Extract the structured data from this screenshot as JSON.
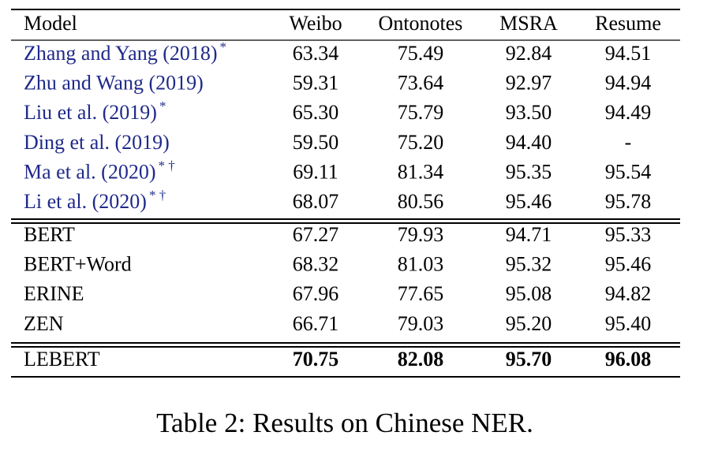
{
  "table": {
    "header": [
      "Model",
      "Weibo",
      "Ontonotes",
      "MSRA",
      "Resume"
    ],
    "groups": [
      {
        "color": "#1f2a8a",
        "rows": [
          {
            "model": "Zhang and Yang (2018)",
            "marks": "*",
            "cells": [
              "63.34",
              "75.49",
              "92.84",
              "94.51"
            ]
          },
          {
            "model": "Zhu and Wang (2019)",
            "cells": [
              "59.31",
              "73.64",
              "92.97",
              "94.94"
            ]
          },
          {
            "model": "Liu et al. (2019)",
            "marks": "*",
            "cells": [
              "65.30",
              "75.79",
              "93.50",
              "94.49"
            ]
          },
          {
            "model": "Ding et al. (2019)",
            "cells": [
              "59.50",
              "75.20",
              "94.40",
              "-"
            ]
          },
          {
            "model": "Ma et al. (2020)",
            "marks": "* †",
            "cells": [
              "69.11",
              "81.34",
              "95.35",
              "95.54"
            ]
          },
          {
            "model": "Li et al. (2020)",
            "marks": "* †",
            "cells": [
              "68.07",
              "80.56",
              "95.46",
              "95.78"
            ]
          }
        ]
      },
      {
        "color": "#000000",
        "rows": [
          {
            "model": "BERT",
            "cells": [
              "67.27",
              "79.93",
              "94.71",
              "95.33"
            ]
          },
          {
            "model": "BERT+Word",
            "cells": [
              "68.32",
              "81.03",
              "95.32",
              "95.46"
            ]
          },
          {
            "model": "ERINE",
            "cells": [
              "67.96",
              "77.65",
              "95.08",
              "94.82"
            ]
          },
          {
            "model": "ZEN",
            "cells": [
              "66.71",
              "79.03",
              "95.20",
              "95.40"
            ]
          }
        ]
      },
      {
        "color": "#000000",
        "rows": [
          {
            "model": "LEBERT",
            "bold_values": true,
            "cells": [
              "70.75",
              "82.08",
              "95.70",
              "96.08"
            ]
          }
        ]
      }
    ]
  },
  "caption": "Table 2: Results on Chinese NER."
}
